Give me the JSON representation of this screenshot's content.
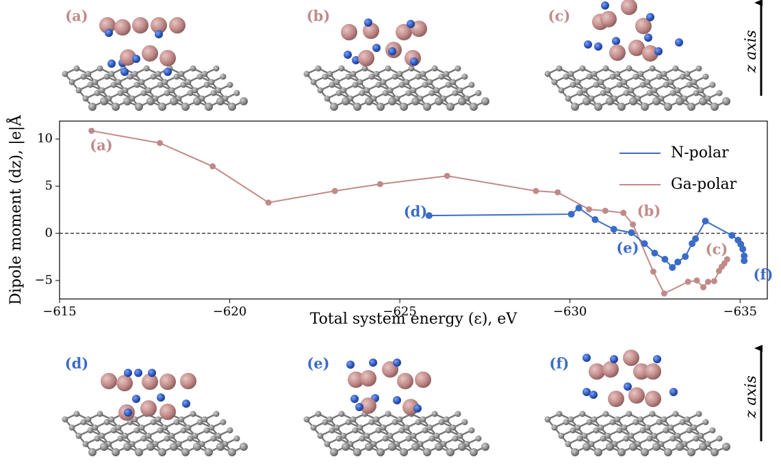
{
  "chart_data": {
    "type": "line",
    "xlabel": "Total system energy (ε), eV",
    "ylabel": "Dipole moment (dz), |e|Å",
    "xlim": [
      -615,
      -635.8
    ],
    "ylim": [
      -6.96,
      11.9
    ],
    "xticks": [
      {
        "value": -615,
        "label": "−615"
      },
      {
        "value": -620,
        "label": "−620"
      },
      {
        "value": -625,
        "label": "−625"
      },
      {
        "value": -630,
        "label": "−630"
      },
      {
        "value": -635,
        "label": "−635"
      }
    ],
    "yticks": [
      {
        "value": -5,
        "label": "−5"
      },
      0,
      5,
      10
    ],
    "reference_line": 0,
    "legend": "upper right",
    "series": [
      {
        "name": "N-polar",
        "color": "#3a6bc8",
        "x": [
          -625.86,
          -630.04,
          -630.26,
          -630.74,
          -631.29,
          -631.81,
          -632.19,
          -632.49,
          -632.79,
          -633.01,
          -633.17,
          -633.39,
          -633.59,
          -633.69,
          -633.98,
          -634.76,
          -634.94,
          -635.02,
          -635.08,
          -635.12,
          -635.12
        ],
        "values": [
          1.88,
          2.03,
          2.68,
          1.45,
          0.43,
          0.07,
          -1.09,
          -2.1,
          -2.75,
          -3.62,
          -3.04,
          -2.46,
          -1.09,
          -0.58,
          1.3,
          -0.22,
          -0.72,
          -1.16,
          -1.67,
          -2.39,
          -2.9
        ]
      },
      {
        "name": "Ga-polar",
        "color": "#c08a88",
        "x": [
          -615.94,
          -617.95,
          -619.5,
          -621.14,
          -623.09,
          -624.42,
          -626.39,
          -629.0,
          -629.64,
          -630.56,
          -631.04,
          -631.57,
          -631.85,
          -632.45,
          -632.77,
          -633.47,
          -633.73,
          -633.92,
          -634.06,
          -634.24,
          -634.38,
          -634.46,
          -634.54,
          -634.62
        ],
        "values": [
          10.87,
          9.57,
          7.1,
          3.26,
          4.49,
          5.22,
          6.09,
          4.49,
          4.35,
          2.54,
          2.39,
          2.17,
          0.94,
          -4.06,
          -6.38,
          -5.14,
          -5.0,
          -5.72,
          -5.14,
          -5.07,
          -3.99,
          -3.55,
          -3.19,
          -2.75
        ]
      }
    ],
    "annotations": [
      "(a)",
      "(b)",
      "(c)",
      "(d)",
      "(e)",
      "(f)"
    ]
  },
  "panels": {
    "labels": [
      "(a)",
      "(b)",
      "(c)",
      "(d)",
      "(e)",
      "(f)"
    ],
    "axis_label": "z axis"
  }
}
